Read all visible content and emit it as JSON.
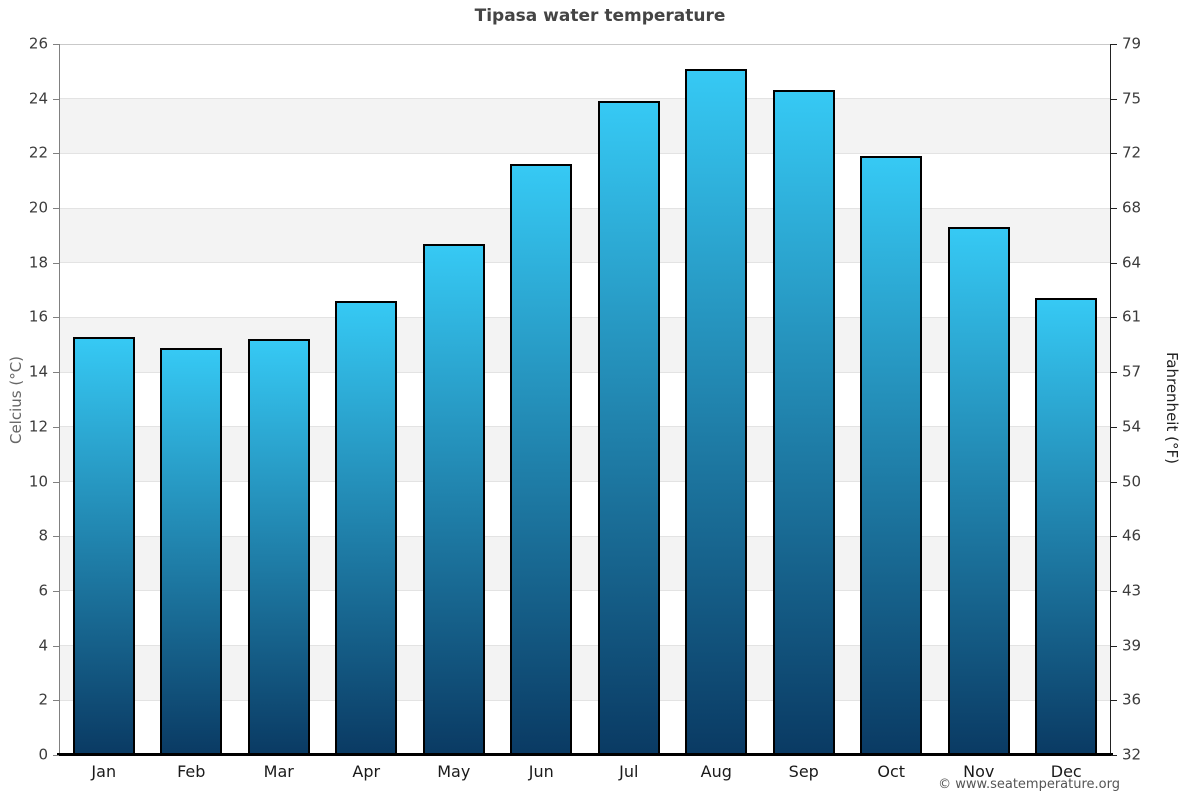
{
  "title": "Tipasa water temperature",
  "y_axis_left": {
    "label": "Celcius (°C)"
  },
  "y_axis_right": {
    "label": "Fahrenheit (°F)"
  },
  "footer": {
    "copyright": "© www.seatemperature.org"
  },
  "chart_data": {
    "type": "bar",
    "title": "Tipasa water temperature",
    "categories": [
      "Jan",
      "Feb",
      "Mar",
      "Apr",
      "May",
      "Jun",
      "Jul",
      "Aug",
      "Sep",
      "Oct",
      "Nov",
      "Dec"
    ],
    "values": [
      15.3,
      14.9,
      15.2,
      16.6,
      18.7,
      21.6,
      23.9,
      25.1,
      24.3,
      21.9,
      19.3,
      16.7
    ],
    "unit": "°C",
    "ylabel_left": "Celcius (°C)",
    "ylabel_right": "Fahrenheit (°F)",
    "ylim_left": [
      0,
      26
    ],
    "yticks_left": [
      0,
      2,
      4,
      6,
      8,
      10,
      12,
      14,
      16,
      18,
      20,
      22,
      24,
      26
    ],
    "yticks_right_labels": [
      "32",
      "36",
      "39",
      "43",
      "46",
      "50",
      "54",
      "57",
      "61",
      "64",
      "68",
      "72",
      "75",
      "79"
    ],
    "legend": "none",
    "grid": "alternating horizontal bands every 2°C",
    "colors": {
      "bar_gradient_top": "#36c9f4",
      "bar_gradient_bottom": "#0a3a63",
      "bar_border": "#000000",
      "band_gray": "#f3f3f3",
      "band_white": "#ffffff",
      "gridline": "#e3e3e3",
      "top_gridline": "#c9c9c9",
      "left_spine": "#808080",
      "right_spine": "#222222",
      "bottom_axis": "#000000",
      "title_text": "#444444",
      "tick_text": "#3c3c3c",
      "month_text": "#1a1a1a",
      "ylabel_left_text": "#666666",
      "ylabel_right_text": "#222222",
      "footer_text": "#555555"
    }
  }
}
